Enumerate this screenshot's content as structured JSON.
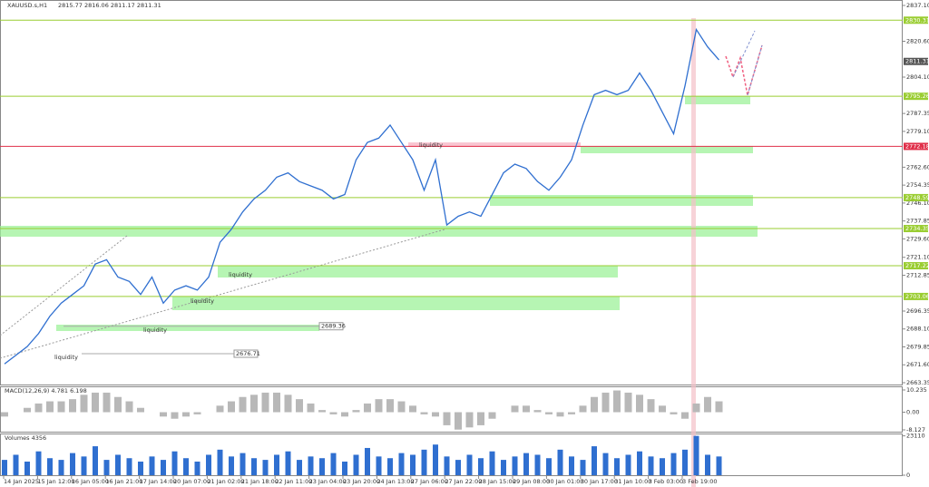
{
  "chart_data": {
    "type": "line",
    "symbol": "XAUUSD.s,H1",
    "quote": "2815.77 2816.06 2811.17 2811.31",
    "price": {
      "ylim": [
        2663.35,
        2837.1
      ],
      "yticks": [
        {
          "value": 2663.35,
          "label": "2663.35"
        },
        {
          "value": 2671.6,
          "label": "2671.60"
        },
        {
          "value": 2679.85,
          "label": "2679.85"
        },
        {
          "value": 2688.1,
          "label": "2688.10"
        },
        {
          "value": 2696.35,
          "label": "2696.35"
        },
        {
          "value": 2712.85,
          "label": "2712.85"
        },
        {
          "value": 2721.1,
          "label": "2721.10"
        },
        {
          "value": 2729.6,
          "label": "2729.60"
        },
        {
          "value": 2737.85,
          "label": "2737.85"
        },
        {
          "value": 2746.1,
          "label": "2746.10"
        },
        {
          "value": 2754.35,
          "label": "2754.35"
        },
        {
          "value": 2762.6,
          "label": "2762.60"
        },
        {
          "value": 2779.1,
          "label": "2779.10"
        },
        {
          "value": 2787.35,
          "label": "2787.35"
        },
        {
          "value": 2804.1,
          "label": "2804.10"
        },
        {
          "value": 2820.6,
          "label": "2820.60"
        },
        {
          "value": 2837.1,
          "label": "2837.10"
        }
      ],
      "color": "#2f6fd0",
      "values": [
        2672,
        2676,
        2680,
        2686,
        2694,
        2700,
        2704,
        2708,
        2718,
        2720,
        2712,
        2710,
        2704,
        2712,
        2700,
        2706,
        2708,
        2706,
        2712,
        2728,
        2734,
        2742,
        2748,
        2752,
        2758,
        2760,
        2756,
        2754,
        2752,
        2748,
        2750,
        2766,
        2774,
        2776,
        2782,
        2774,
        2766,
        2752,
        2766,
        2736,
        2740,
        2742,
        2740,
        2750,
        2760,
        2764,
        2762,
        2756,
        2752,
        2758,
        2766,
        2782,
        2796,
        2798,
        2796,
        2798,
        2806,
        2798,
        2788,
        2778,
        2800,
        2826,
        2818,
        2812
      ],
      "current": 2811.31,
      "levels": [
        {
          "value": 2830.31,
          "color": "#9acd32"
        },
        {
          "value": 2795.26,
          "color": "#9acd32"
        },
        {
          "value": 2772.18,
          "color": "#e0304a"
        },
        {
          "value": 2748.59,
          "color": "#9acd32"
        },
        {
          "value": 2734.35,
          "color": "#9acd32"
        },
        {
          "value": 2717.22,
          "color": "#9acd32"
        },
        {
          "value": 2703.06,
          "color": "#9acd32"
        }
      ],
      "markers": [
        2689.36,
        2676.71
      ],
      "annotations": [
        "liquidity",
        "liquidity",
        "liquidity",
        "liquidity",
        "liquidity"
      ]
    },
    "macd": {
      "label": "MACD(12,26,9) 4.781 6.198",
      "ylim": [
        -8.96,
        11.9
      ],
      "yticks": [
        {
          "value": 10.235,
          "label": "10.235"
        },
        {
          "value": 0,
          "label": "0.00"
        },
        {
          "value": -8.127,
          "label": "-8.127"
        }
      ],
      "values": [
        -2,
        0,
        2,
        4,
        5,
        5,
        6,
        8,
        9,
        9,
        7,
        5,
        2,
        0,
        -2,
        -3,
        -2,
        -1,
        0,
        3,
        5,
        7,
        8,
        9,
        9,
        8,
        6,
        4,
        1,
        -1,
        -2,
        1,
        4,
        6,
        6,
        5,
        3,
        -1,
        -2,
        -6,
        -8,
        -7,
        -6,
        -3,
        0,
        3,
        3,
        1,
        -1,
        -2,
        -1,
        3,
        7,
        9,
        10,
        9,
        8,
        6,
        3,
        -1,
        -3,
        4,
        7,
        5
      ]
    },
    "volume": {
      "label": "Volumes 4356",
      "ylim": [
        0,
        24500
      ],
      "yticks": [
        23110,
        0
      ],
      "color": "#2f6fd0",
      "values": [
        9000,
        12000,
        8000,
        14000,
        10000,
        9000,
        13000,
        11000,
        17000,
        9000,
        12000,
        10000,
        8000,
        11000,
        9000,
        14000,
        10000,
        8000,
        12000,
        15000,
        11000,
        13000,
        10000,
        9000,
        12000,
        14000,
        9000,
        11000,
        10000,
        13000,
        8000,
        12000,
        16000,
        11000,
        10000,
        13000,
        12000,
        15000,
        18000,
        11000,
        9000,
        12000,
        10000,
        14000,
        9000,
        11000,
        13000,
        12000,
        10000,
        15000,
        11000,
        9000,
        17000,
        13000,
        10000,
        12000,
        14000,
        11000,
        10000,
        13000,
        15000,
        23110,
        12000,
        11000
      ]
    },
    "time_labels": [
      "14 Jan 2025",
      "15 Jan 12:00",
      "16 Jan 05:00",
      "16 Jan 21:00",
      "17 Jan 14:00",
      "20 Jan 07:00",
      "21 Jan 02:00",
      "21 Jan 18:00",
      "22 Jan 11:00",
      "23 Jan 04:00",
      "23 Jan 20:00",
      "24 Jan 13:00",
      "27 Jan 06:00",
      "27 Jan 22:00",
      "28 Jan 15:00",
      "29 Jan 08:00",
      "30 Jan 01:00",
      "30 Jan 17:00",
      "31 Jan 10:00",
      "3 Feb 03:00",
      "3 Feb 19:00"
    ]
  }
}
